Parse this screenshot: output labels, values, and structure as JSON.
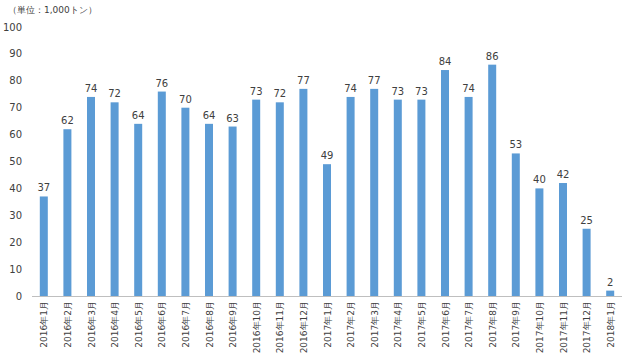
{
  "chart_data": {
    "type": "bar",
    "y_label": "（単位：1,000トン）",
    "categories": [
      "2016年1月",
      "2016年2月",
      "2016年3月",
      "2016年4月",
      "2016年5月",
      "2016年6月",
      "2016年7月",
      "2016年8月",
      "2016年9月",
      "2016年10月",
      "2016年11月",
      "2016年12月",
      "2017年1月",
      "2017年2月",
      "2017年3月",
      "2017年4月",
      "2017年5月",
      "2017年6月",
      "2017年7月",
      "2017年8月",
      "2017年9月",
      "2017年10月",
      "2017年11月",
      "2017年12月",
      "2018年1月"
    ],
    "values": [
      37,
      62,
      74,
      72,
      64,
      76,
      70,
      64,
      63,
      73,
      72,
      77,
      49,
      74,
      77,
      73,
      73,
      84,
      74,
      86,
      53,
      40,
      42,
      25,
      2
    ],
    "color": "#5b9bd5",
    "ylim": [
      0,
      100
    ],
    "yticks": [
      0,
      10,
      20,
      30,
      40,
      50,
      60,
      70,
      80,
      90,
      100
    ],
    "grid": false,
    "data_labels": true
  }
}
